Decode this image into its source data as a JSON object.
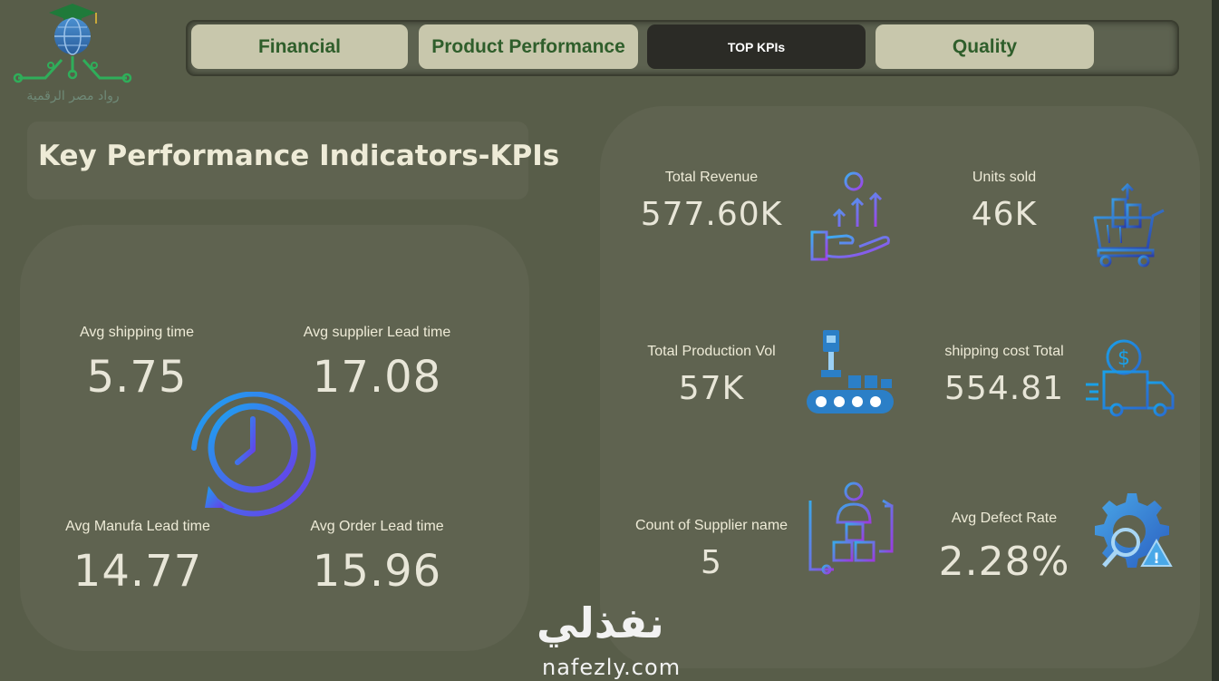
{
  "logo": {
    "text": "رواد مصر الرقمية"
  },
  "tabs": [
    {
      "label": "Financial",
      "active": false
    },
    {
      "label": "Product Performance",
      "active": false
    },
    {
      "label": "TOP KPIs",
      "active": true
    },
    {
      "label": "Quality",
      "active": false
    }
  ],
  "page_title": "Key Performance Indicators-KPIs",
  "left_kpis": {
    "shipping": {
      "label": "Avg shipping time",
      "value": "5.75"
    },
    "supplier": {
      "label": "Avg supplier Lead time",
      "value": "17.08"
    },
    "manufa": {
      "label": "Avg Manufa Lead time",
      "value": "14.77"
    },
    "order": {
      "label": "Avg Order Lead time",
      "value": "15.96"
    }
  },
  "right_kpis": {
    "revenue": {
      "label": "Total Revenue",
      "value": "577.60K",
      "icon": "revenue-hand-icon"
    },
    "units": {
      "label": "Units sold",
      "value": "46K",
      "icon": "cart-icon"
    },
    "production": {
      "label": "Total Production Vol",
      "value": "57K",
      "icon": "conveyor-icon"
    },
    "shipping_cost": {
      "label": "shipping cost Total",
      "value": "554.81",
      "icon": "delivery-truck-icon"
    },
    "suppliers": {
      "label": "Count of Supplier name",
      "value": "5",
      "icon": "supplier-icon"
    },
    "defect": {
      "label": "Avg Defect Rate",
      "value": "2.28%",
      "icon": "defect-gear-icon"
    }
  },
  "watermark": {
    "arabic": "نفذلي",
    "latin": "nafezly.com"
  },
  "colors": {
    "background": "#585d49",
    "card": "#5f6350",
    "tab": "#c8c7ac",
    "tab_active": "#2b2b26",
    "tab_text": "#2f5e2b"
  }
}
